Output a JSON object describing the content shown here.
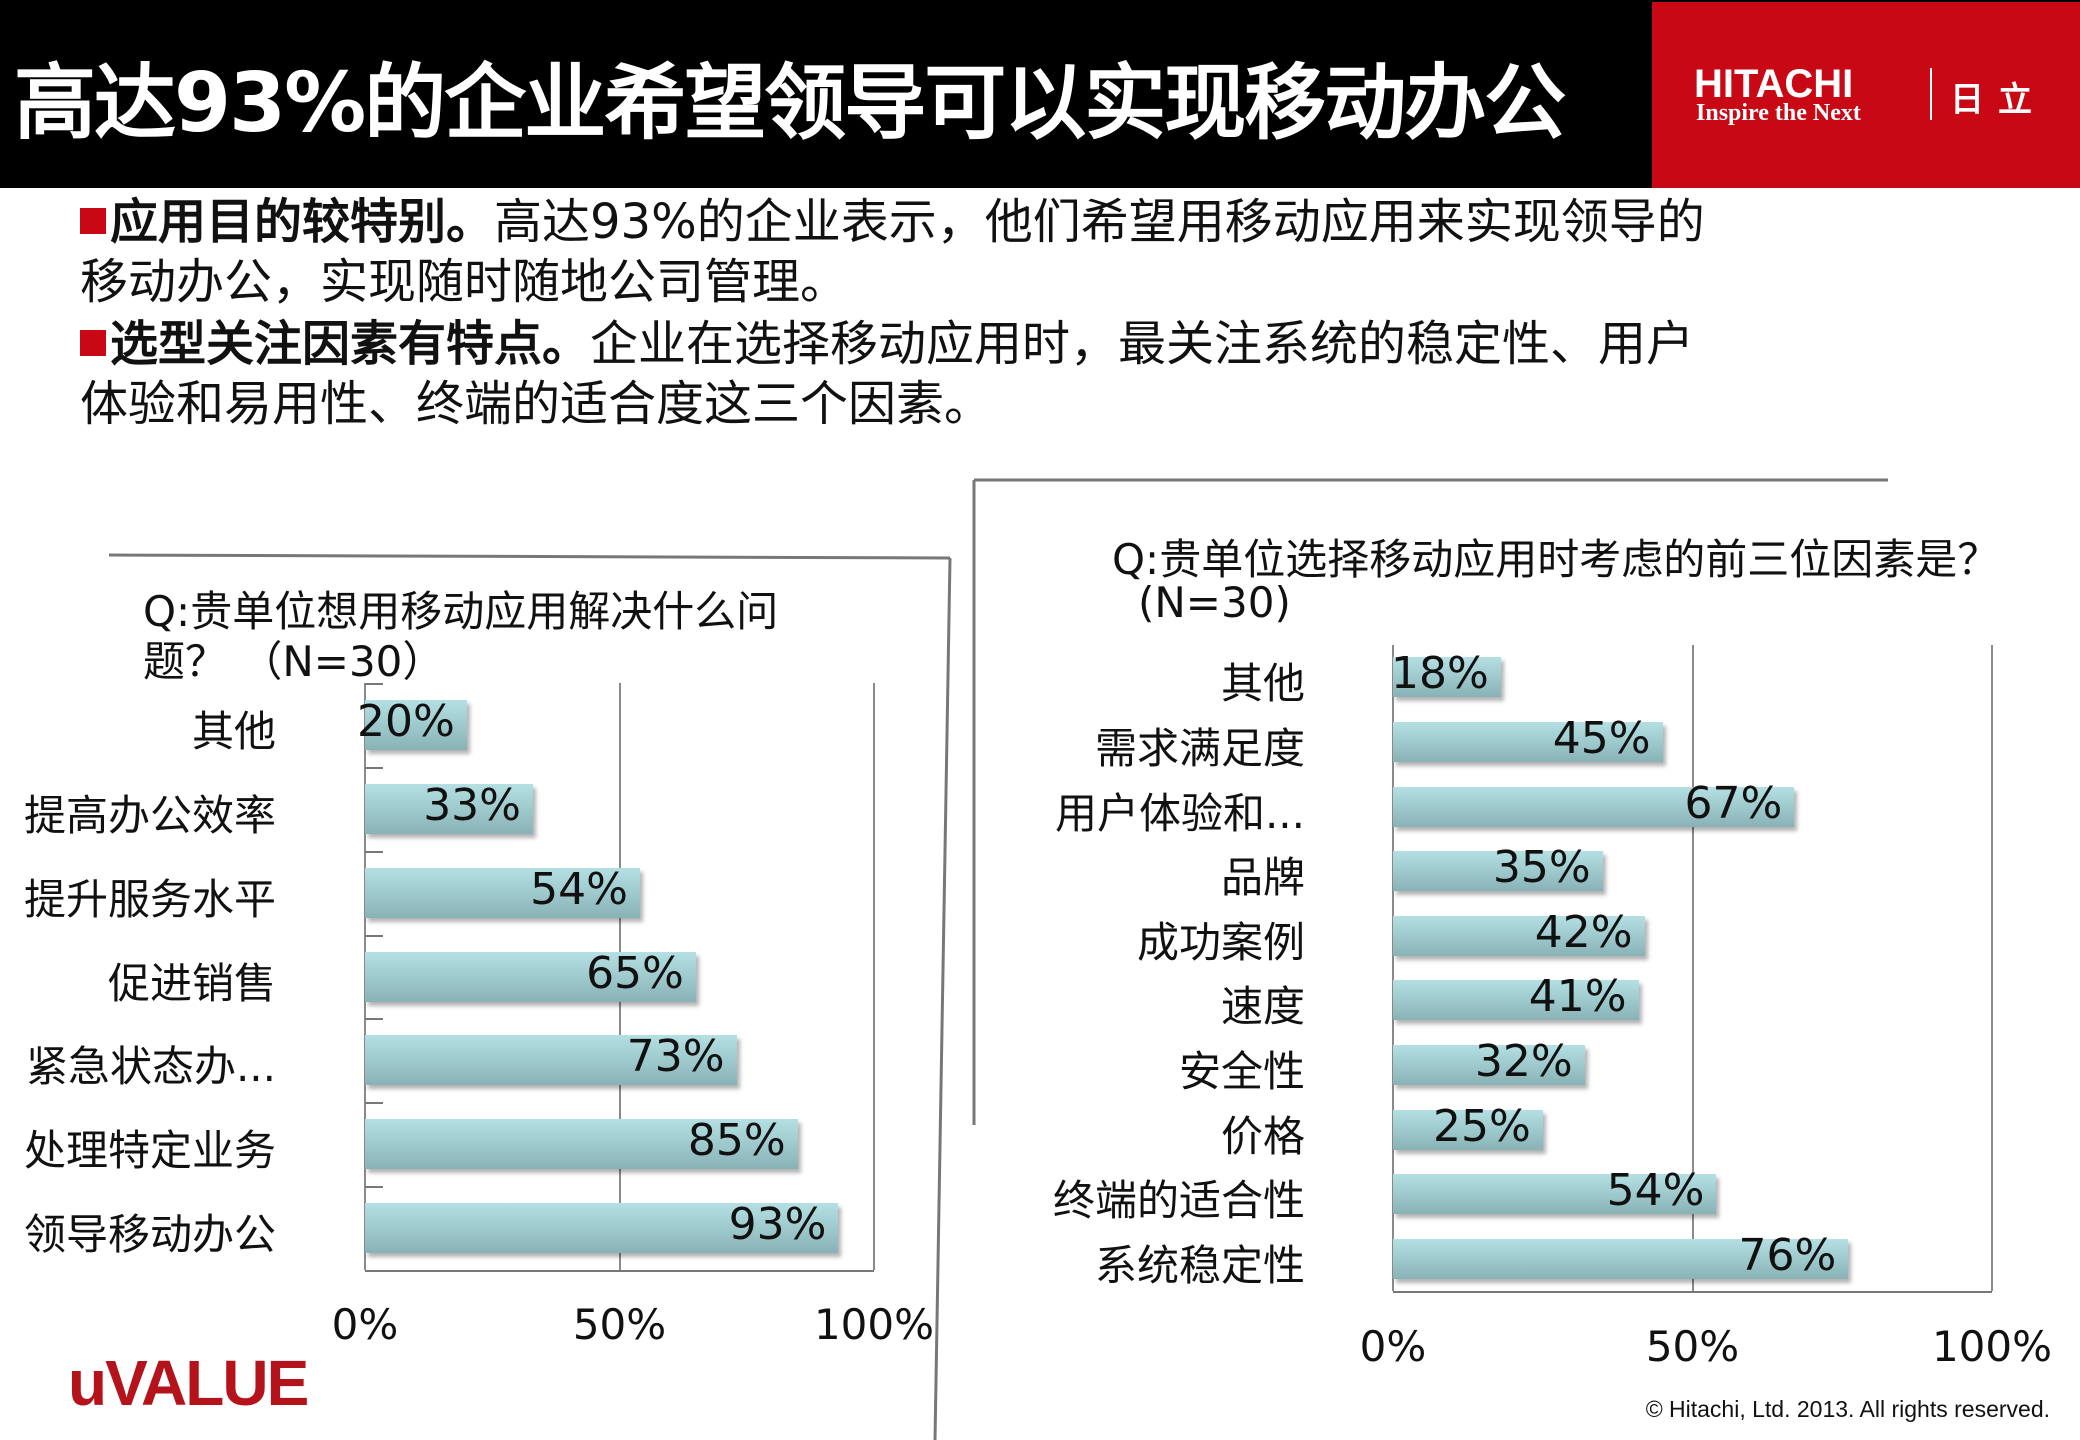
{
  "header": {
    "title": "高达93%的企业希望领导可以实现移动办公",
    "brand": {
      "name": "HITACHI",
      "tagline": "Inspire the Next",
      "name_cn": "日立",
      "color": "#c80814"
    }
  },
  "body": {
    "bullet1_bold": "应用目的较特别。",
    "bullet1_text": "高达93%的企业表示，他们希望用移动应用来实现领导的",
    "bullet1_cont": "移动办公，实现随时随地公司管理。",
    "bullet2_bold": "选型关注因素有特点。",
    "bullet2_text": "企业在选择移动应用时，最关注系统的稳定性、用户",
    "bullet2_cont": "体验和易用性、终端的适合度这三个因素。"
  },
  "chart_data": [
    {
      "type": "bar",
      "orientation": "horizontal",
      "title_line1": "Q:贵单位想用移动应用解决什么问",
      "title_line2": "题？ （N=30）",
      "categories": [
        "其他",
        "提高办公效率",
        "提升服务水平",
        "促进销售",
        "紧急状态办...",
        "处理特定业务",
        "领导移动办公"
      ],
      "values": [
        20,
        33,
        54,
        65,
        73,
        85,
        93
      ],
      "data_labels": [
        "20%",
        "33%",
        "54%",
        "65%",
        "73%",
        "85%",
        "93%"
      ],
      "xlim": [
        0,
        100
      ],
      "xticks": [
        "0%",
        "50%",
        "100%"
      ],
      "grid": true,
      "bar_color": "#a5d3d7"
    },
    {
      "type": "bar",
      "orientation": "horizontal",
      "title_line1": "Q:贵单位选择移动应用时考虑的前三位因素是？",
      "title_line2": "(N=30)",
      "categories": [
        "其他",
        "需求满足度",
        "用户体验和...",
        "品牌",
        "成功案例",
        "速度",
        "安全性",
        "价格",
        "终端的适合性",
        "系统稳定性"
      ],
      "values": [
        18,
        45,
        67,
        35,
        42,
        41,
        32,
        25,
        54,
        76
      ],
      "data_labels": [
        "18%",
        "45%",
        "67%",
        "35%",
        "42%",
        "41%",
        "32%",
        "25%",
        "54%",
        "76%"
      ],
      "xlim": [
        0,
        100
      ],
      "xticks": [
        "0%",
        "50%",
        "100%"
      ],
      "grid": true,
      "bar_color": "#a5d3d7"
    }
  ],
  "footer": {
    "logo": "uVALUE",
    "copyright": "© Hitachi, Ltd. 2013. All rights reserved."
  }
}
